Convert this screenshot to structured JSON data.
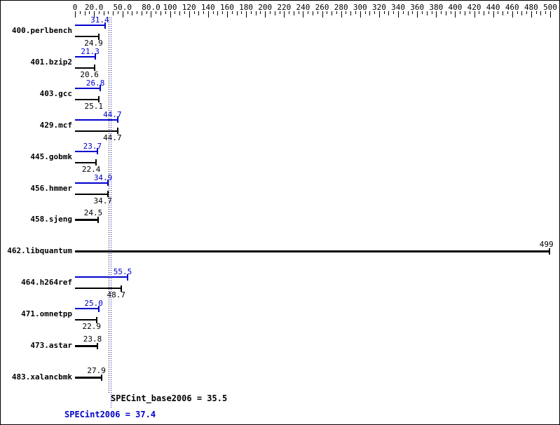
{
  "colors": {
    "peak": "#0000cc",
    "base": "#000000"
  },
  "bottom": {
    "base_label": "SPECint_base2006 = 35.5",
    "peak_label": "SPECint2006 = 37.4"
  },
  "chart_data": {
    "type": "bar",
    "orientation": "horizontal",
    "xlim": [
      0,
      500
    ],
    "grid": false,
    "legend": "none",
    "axis_ticks": [
      {
        "v": 0,
        "label": "0"
      },
      {
        "v": 20,
        "label": "20.0"
      },
      {
        "v": 50,
        "label": "50.0"
      },
      {
        "v": 80,
        "label": "80.0"
      },
      {
        "v": 100,
        "label": "100"
      },
      {
        "v": 120,
        "label": "120"
      },
      {
        "v": 140,
        "label": "140"
      },
      {
        "v": 160,
        "label": "160"
      },
      {
        "v": 180,
        "label": "180"
      },
      {
        "v": 200,
        "label": "200"
      },
      {
        "v": 220,
        "label": "220"
      },
      {
        "v": 240,
        "label": "240"
      },
      {
        "v": 260,
        "label": "260"
      },
      {
        "v": 280,
        "label": "280"
      },
      {
        "v": 300,
        "label": "300"
      },
      {
        "v": 320,
        "label": "320"
      },
      {
        "v": 340,
        "label": "340"
      },
      {
        "v": 360,
        "label": "360"
      },
      {
        "v": 380,
        "label": "380"
      },
      {
        "v": 400,
        "label": "400"
      },
      {
        "v": 420,
        "label": "420"
      },
      {
        "v": 440,
        "label": "440"
      },
      {
        "v": 460,
        "label": "460"
      },
      {
        "v": 480,
        "label": "480"
      },
      {
        "v": 500,
        "label": "500"
      }
    ],
    "series": [
      {
        "name": "SPECint2006 (peak)",
        "color": "#0000cc"
      },
      {
        "name": "SPECint_base2006 (base)",
        "color": "#000000"
      }
    ],
    "benchmarks": [
      {
        "name": "400.perlbench",
        "peak": 31.4,
        "peak_label": "31.4",
        "base": 24.9,
        "base_label": "24.9"
      },
      {
        "name": "401.bzip2",
        "peak": 21.3,
        "peak_label": "21.3",
        "base": 20.6,
        "base_label": "20.6"
      },
      {
        "name": "403.gcc",
        "peak": 26.8,
        "peak_label": "26.8",
        "base": 25.1,
        "base_label": "25.1"
      },
      {
        "name": "429.mcf",
        "peak": 44.7,
        "peak_label": "44.7",
        "base": 44.7,
        "base_label": "44.7"
      },
      {
        "name": "445.gobmk",
        "peak": 23.7,
        "peak_label": "23.7",
        "base": 22.4,
        "base_label": "22.4"
      },
      {
        "name": "456.hmmer",
        "peak": 34.9,
        "peak_label": "34.9",
        "base": 34.7,
        "base_label": "34.7"
      },
      {
        "name": "458.sjeng",
        "peak": null,
        "peak_label": null,
        "base": 24.5,
        "base_label": "24.5"
      },
      {
        "name": "462.libquantum",
        "peak": null,
        "peak_label": null,
        "base": 499,
        "base_label": "499"
      },
      {
        "name": "464.h264ref",
        "peak": 55.5,
        "peak_label": "55.5",
        "base": 48.7,
        "base_label": "48.7"
      },
      {
        "name": "471.omnetpp",
        "peak": 25.0,
        "peak_label": "25.0",
        "base": 22.9,
        "base_label": "22.9"
      },
      {
        "name": "473.astar",
        "peak": null,
        "peak_label": null,
        "base": 23.8,
        "base_label": "23.8"
      },
      {
        "name": "483.xalancbmk",
        "peak": null,
        "peak_label": null,
        "base": 27.9,
        "base_label": "27.9"
      }
    ],
    "means": {
      "base": 35.5,
      "peak": 37.4
    }
  }
}
